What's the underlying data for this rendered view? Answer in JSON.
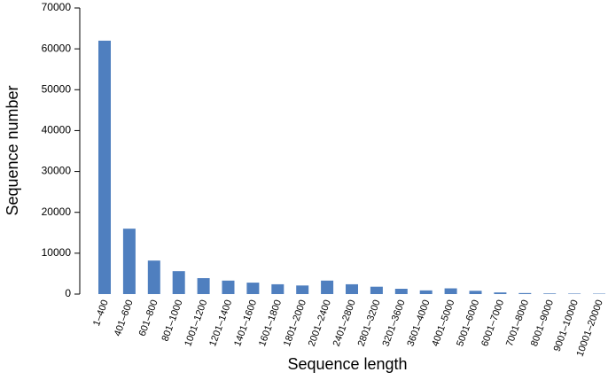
{
  "chart_data": {
    "type": "bar",
    "x_label": "Sequence length",
    "y_label": "Sequence number",
    "categories": [
      "1–400",
      "401–600",
      "601–800",
      "801–1000",
      "1001–1200",
      "1201–1400",
      "1401–1600",
      "1601–1800",
      "1801–2000",
      "2001–2400",
      "2401–2800",
      "2801–3200",
      "3201–3600",
      "3601–4000",
      "4001–5000",
      "5001–6000",
      "6001–7000",
      "7001–8000",
      "8001–9000",
      "9001–10000",
      "10001–20000"
    ],
    "values": [
      62000,
      16000,
      8200,
      5600,
      3900,
      3300,
      2800,
      2400,
      2100,
      3300,
      2400,
      1800,
      1300,
      900,
      1400,
      800,
      400,
      250,
      150,
      120,
      100
    ],
    "color": "#4f7fbf",
    "ylim": [
      0,
      70000
    ],
    "yticks": [
      0,
      10000,
      20000,
      30000,
      40000,
      50000,
      60000,
      70000
    ]
  }
}
